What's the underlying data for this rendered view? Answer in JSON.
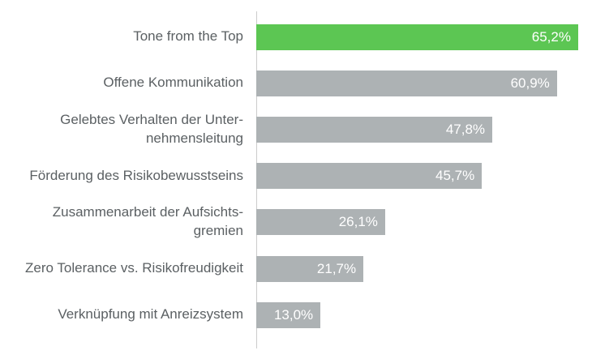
{
  "chart_data": {
    "type": "bar",
    "orientation": "horizontal",
    "title": "",
    "xlabel": "",
    "ylabel": "",
    "grid": false,
    "legend": false,
    "xlim": [
      0,
      68
    ],
    "categories": [
      "Tone from the Top",
      "Offene Kommunikation",
      "Gelebtes Verhalten der Unter-\nnehmensleitung",
      "Förderung des Risikobewusstseins",
      "Zusammenarbeit der Aufsichts-\ngremien",
      "Zero Tolerance vs. Risikofreudigkeit",
      "Verknüpfung mit Anreizsystem"
    ],
    "values": [
      65.2,
      60.9,
      47.8,
      45.7,
      26.1,
      21.7,
      13.0
    ],
    "value_labels": [
      "65,2%",
      "60,9%",
      "47,8%",
      "45,7%",
      "26,1%",
      "21,7%",
      "13,0%"
    ],
    "highlight_index": 0,
    "colors": {
      "highlight": "#5cc653",
      "default": "#adb2b4",
      "axis_line": "#cccccc",
      "label_text": "#5b6063",
      "value_text": "#ffffff"
    }
  }
}
